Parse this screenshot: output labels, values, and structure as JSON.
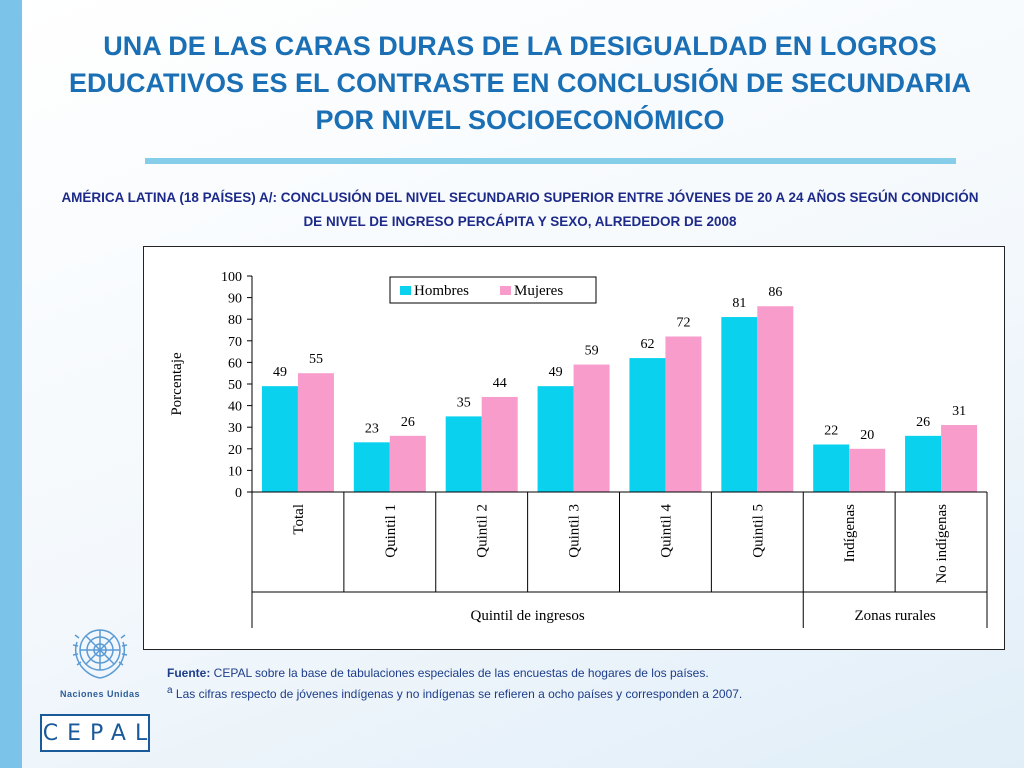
{
  "slide": {
    "title": "UNA DE LAS CARAS DURAS DE LA DESIGUALDAD EN LOGROS EDUCATIVOS ES EL CONTRASTE EN CONCLUSIÓN DE SECUNDARIA POR NIVEL SOCIOECONÓMICO",
    "subtitle": "AMÉRICA LATINA (18 PAÍSES) A/: CONCLUSIÓN DEL NIVEL SECUNDARIO SUPERIOR ENTRE JÓVENES DE 20 A 24 AÑOS SEGÚN CONDICIÓN DE NIVEL DE INGRESO PERCÁPITA Y SEXO, ALREDEDOR DE 2008",
    "source_label": "Fuente:",
    "source_text": " CEPAL sobre la base de tabulaciones especiales de las encuestas de hogares de los países.",
    "note_mark": "a",
    "note_text": " Las cifras respecto de jóvenes indígenas y no indígenas se refieren a ocho países y corresponden a 2007.",
    "logo_un": "Naciones Unidas",
    "logo_cepal": "CEPAL"
  },
  "colors": {
    "hombres": "#0ad2ee",
    "mujeres": "#f79ccb",
    "title": "#1a6fb5",
    "subtitle": "#1d2a8a"
  },
  "chart_data": {
    "type": "bar",
    "categories": [
      "Total",
      "Quintil 1",
      "Quintil 2",
      "Quintil 3",
      "Quintil 4",
      "Quintil 5",
      "Indígenas",
      "No indígenas"
    ],
    "series": [
      {
        "name": "Hombres",
        "values": [
          49,
          23,
          35,
          49,
          62,
          81,
          22,
          26
        ]
      },
      {
        "name": "Mujeres",
        "values": [
          55,
          26,
          44,
          59,
          72,
          86,
          20,
          31
        ]
      }
    ],
    "groups": [
      {
        "label": "Quintil de ingresos",
        "from": 0,
        "to": 5
      },
      {
        "label": "Zonas rurales",
        "from": 6,
        "to": 7
      }
    ],
    "ylabel": "Porcentaje",
    "ylim": [
      0,
      100
    ],
    "yticks": [
      0,
      10,
      20,
      30,
      40,
      50,
      60,
      70,
      80,
      90,
      100
    ],
    "legend_position": "top-center"
  }
}
